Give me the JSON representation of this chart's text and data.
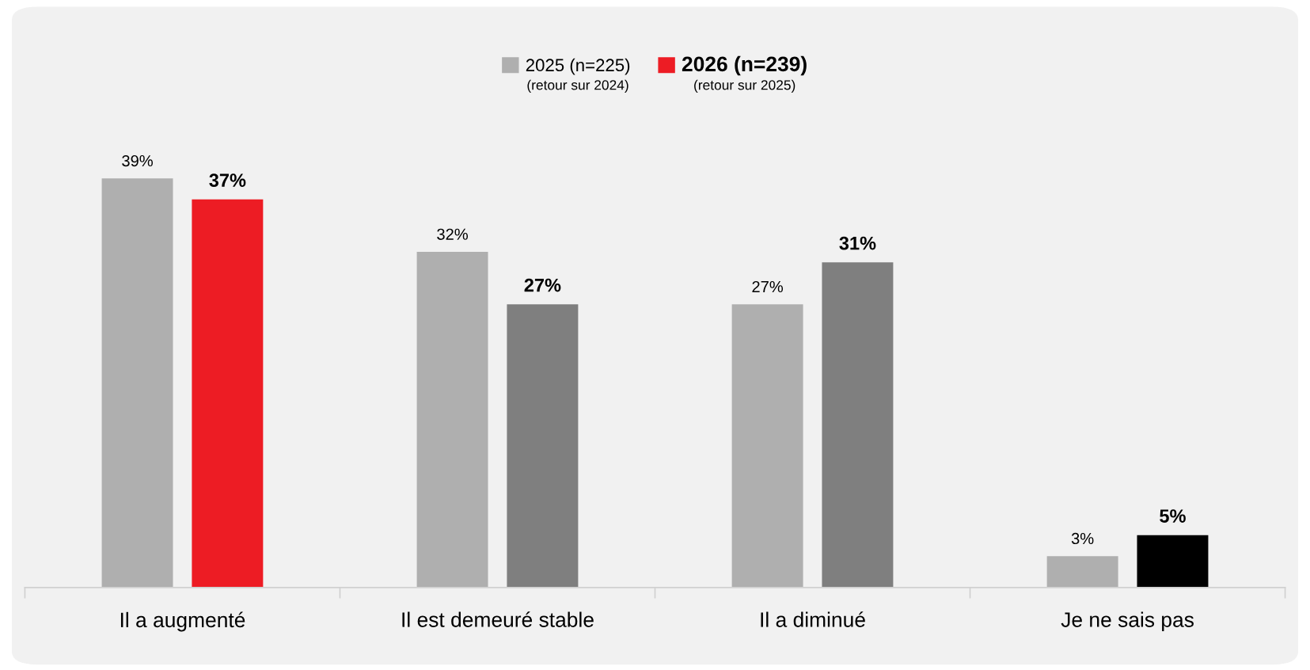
{
  "chart_data": {
    "type": "bar",
    "categories": [
      "Il a augmenté",
      "Il est demeuré stable",
      "Il a diminué",
      "Je ne sais pas"
    ],
    "series": [
      {
        "name": "2025 (n=225)",
        "color": "#afafaf",
        "values": [
          39,
          32,
          27,
          3
        ],
        "value_labels": [
          "39%",
          "32%",
          "27%",
          "3%"
        ]
      },
      {
        "name": "2026 (n=239)",
        "color": "#ed1c24",
        "colors": [
          "#ed1c24",
          "#7f7f7f",
          "#7f7f7f",
          "#000000"
        ],
        "values": [
          37,
          27,
          31,
          5
        ],
        "value_labels": [
          "37%",
          "27%",
          "31%",
          "5%"
        ]
      }
    ],
    "annotations": [
      "(retour sur 2024)",
      "(retour sur 2025)"
    ],
    "legend": "top",
    "grid": false
  }
}
